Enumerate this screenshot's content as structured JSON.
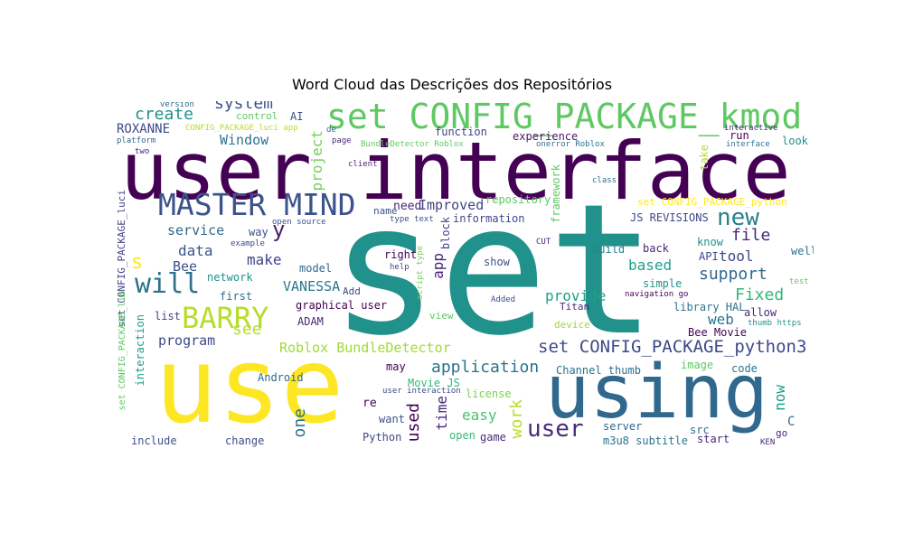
{
  "chart_data": {
    "type": "wordcloud",
    "title": "Word Cloud das Descrições dos Repositórios",
    "colormap": "viridis",
    "background": "#ffffff",
    "words": [
      {
        "text": "set",
        "weight": 100,
        "color": "#21918c"
      },
      {
        "text": "user interface",
        "weight": 68,
        "color": "#440154"
      },
      {
        "text": "use",
        "weight": 66,
        "color": "#fde725"
      },
      {
        "text": "using",
        "weight": 46,
        "color": "#31688e"
      },
      {
        "text": "set CONFIG_PACKAGE_kmod",
        "weight": 24,
        "color": "#5ec962"
      },
      {
        "text": "MASTER MIND",
        "weight": 21,
        "color": "#3b528b"
      },
      {
        "text": "BARRY",
        "weight": 19,
        "color": "#b5de2b"
      },
      {
        "text": "will",
        "weight": 18,
        "color": "#2c728e"
      },
      {
        "text": "new",
        "weight": 15,
        "color": "#26828e"
      },
      {
        "text": "user",
        "weight": 15,
        "color": "#472d7b"
      },
      {
        "text": "set CONFIG_PACKAGE_python3",
        "weight": 13,
        "color": "#3e4989"
      },
      {
        "text": "application",
        "weight": 12,
        "color": "#2c728e"
      },
      {
        "text": "system",
        "weight": 11,
        "color": "#3b528b"
      },
      {
        "text": "create",
        "weight": 11,
        "color": "#21918c"
      },
      {
        "text": "Window",
        "weight": 10,
        "color": "#2c728e"
      },
      {
        "text": "file",
        "weight": 11,
        "color": "#482878"
      },
      {
        "text": "Improved",
        "weight": 10,
        "color": "#414487"
      },
      {
        "text": "Roblox BundleDetector",
        "weight": 10,
        "color": "#a0da39"
      },
      {
        "text": "support",
        "weight": 11,
        "color": "#31688e"
      },
      {
        "text": "Fixed",
        "weight": 11,
        "color": "#35b779"
      },
      {
        "text": "based",
        "weight": 10,
        "color": "#1f9e89"
      },
      {
        "text": "provide",
        "weight": 10,
        "color": "#1fa187"
      },
      {
        "text": "easy",
        "weight": 10,
        "color": "#4ac16d"
      },
      {
        "text": "work",
        "weight": 11,
        "color": "#b5de2b"
      },
      {
        "text": "VANESSA",
        "weight": 10,
        "color": "#2a788e"
      },
      {
        "text": "data",
        "weight": 10,
        "color": "#3b528b"
      },
      {
        "text": "make",
        "weight": 10,
        "color": "#414487"
      },
      {
        "text": "service",
        "weight": 9,
        "color": "#31688e"
      },
      {
        "text": "program",
        "weight": 10,
        "color": "#3e4989"
      },
      {
        "text": "ROXANNE",
        "weight": 9,
        "color": "#3e4989"
      },
      {
        "text": "project",
        "weight": 10,
        "color": "#73d056"
      },
      {
        "text": "y",
        "weight": 14,
        "color": "#481f70"
      },
      {
        "text": "app",
        "weight": 10,
        "color": "#482475"
      },
      {
        "text": "used",
        "weight": 11,
        "color": "#440154"
      },
      {
        "text": "one",
        "weight": 10,
        "color": "#2c728e"
      },
      {
        "text": "time",
        "weight": 10,
        "color": "#482878"
      },
      {
        "text": "web",
        "weight": 10,
        "color": "#2c728e"
      },
      {
        "text": "tool",
        "weight": 9,
        "color": "#3e4989"
      },
      {
        "text": "now",
        "weight": 9,
        "color": "#1f9e89"
      },
      {
        "text": "see",
        "weight": 10,
        "color": "#b5de2b"
      },
      {
        "text": "Bee",
        "weight": 9,
        "color": "#3b528b"
      },
      {
        "text": "s",
        "weight": 12,
        "color": "#fde725"
      },
      {
        "text": "set CONFIG_PACKAGE_luci",
        "weight": 7,
        "color": "#414487"
      },
      {
        "text": "set CONFIG_PACKAGE_python",
        "weight": 7,
        "color": "#fde725"
      },
      {
        "text": "set CONFIG_PACKAGE_lib",
        "weight": 7,
        "color": "#5ec962"
      },
      {
        "text": "repository",
        "weight": 8,
        "color": "#5ec962"
      },
      {
        "text": "experience",
        "weight": 7,
        "color": "#481a6c"
      },
      {
        "text": "function",
        "weight": 7,
        "color": "#414487"
      },
      {
        "text": "information",
        "weight": 7,
        "color": "#3e4989"
      },
      {
        "text": "framework",
        "weight": 7,
        "color": "#5ec962"
      },
      {
        "text": "JS REVISIONS",
        "weight": 7,
        "color": "#3e4989"
      },
      {
        "text": "way",
        "weight": 7,
        "color": "#3b528b"
      },
      {
        "text": "graphical user",
        "weight": 7,
        "color": "#440154"
      },
      {
        "text": "model",
        "weight": 7,
        "color": "#31688e"
      },
      {
        "text": "network",
        "weight": 7,
        "color": "#21918c"
      },
      {
        "text": "first",
        "weight": 7,
        "color": "#2c728e"
      },
      {
        "text": "list",
        "weight": 7,
        "color": "#414487"
      },
      {
        "text": "ADAM",
        "weight": 7,
        "color": "#482878"
      },
      {
        "text": "interaction",
        "weight": 7,
        "color": "#1f9e89"
      },
      {
        "text": "include",
        "weight": 7,
        "color": "#3b528b"
      },
      {
        "text": "change",
        "weight": 7,
        "color": "#3e4989"
      },
      {
        "text": "Android",
        "weight": 7,
        "color": "#31688e"
      },
      {
        "text": "may",
        "weight": 7,
        "color": "#440154"
      },
      {
        "text": "Movie JS",
        "weight": 7,
        "color": "#35b779"
      },
      {
        "text": "re",
        "weight": 8,
        "color": "#440154"
      },
      {
        "text": "want",
        "weight": 7,
        "color": "#3b528b"
      },
      {
        "text": "Python",
        "weight": 7,
        "color": "#3e4989"
      },
      {
        "text": "open",
        "weight": 7,
        "color": "#35b779"
      },
      {
        "text": "game",
        "weight": 7,
        "color": "#472d7b"
      },
      {
        "text": "license",
        "weight": 7,
        "color": "#7ad151"
      },
      {
        "text": "server",
        "weight": 7,
        "color": "#31688e"
      },
      {
        "text": "src",
        "weight": 7,
        "color": "#2c728e"
      },
      {
        "text": "m3u8 subtitle",
        "weight": 7,
        "color": "#2c728e"
      },
      {
        "text": "start",
        "weight": 7,
        "color": "#482878"
      },
      {
        "text": "code",
        "weight": 7,
        "color": "#2c728e"
      },
      {
        "text": "image",
        "weight": 7,
        "color": "#5ec962"
      },
      {
        "text": "Channel thumb",
        "weight": 7,
        "color": "#2c728e"
      },
      {
        "text": "Bee Movie",
        "weight": 7,
        "color": "#440154"
      },
      {
        "text": "allow",
        "weight": 7,
        "color": "#482878"
      },
      {
        "text": "library HAL",
        "weight": 7,
        "color": "#2c728e"
      },
      {
        "text": "navigation go",
        "weight": 6,
        "color": "#440154"
      },
      {
        "text": "simple",
        "weight": 7,
        "color": "#21918c"
      },
      {
        "text": "API",
        "weight": 7,
        "color": "#3e4989"
      },
      {
        "text": "back",
        "weight": 7,
        "color": "#482878"
      },
      {
        "text": "build",
        "weight": 7,
        "color": "#26828e"
      },
      {
        "text": "know",
        "weight": 7,
        "color": "#21918c"
      },
      {
        "text": "well",
        "weight": 7,
        "color": "#2c728e"
      },
      {
        "text": "look",
        "weight": 7,
        "color": "#21918c"
      },
      {
        "text": "run",
        "weight": 7,
        "color": "#440154"
      },
      {
        "text": "take",
        "weight": 7,
        "color": "#b5de2b"
      },
      {
        "text": "show",
        "weight": 7,
        "color": "#3b528b"
      },
      {
        "text": "right",
        "weight": 7,
        "color": "#440154"
      },
      {
        "text": "block",
        "weight": 7,
        "color": "#414487"
      },
      {
        "text": "need",
        "weight": 8,
        "color": "#482878"
      },
      {
        "text": "name",
        "weight": 6,
        "color": "#3b528b"
      },
      {
        "text": "view",
        "weight": 6,
        "color": "#5ec962"
      },
      {
        "text": "device",
        "weight": 6,
        "color": "#a0da39"
      },
      {
        "text": "Titan",
        "weight": 6,
        "color": "#482878"
      },
      {
        "text": "Add",
        "weight": 6,
        "color": "#3e4989"
      },
      {
        "text": "control",
        "weight": 6,
        "color": "#5ec962"
      },
      {
        "text": "AI",
        "weight": 6,
        "color": "#3b528b"
      },
      {
        "text": "version",
        "weight": 5,
        "color": "#31688e"
      },
      {
        "text": "platform",
        "weight": 5,
        "color": "#31688e"
      },
      {
        "text": "client",
        "weight": 5,
        "color": "#482878"
      },
      {
        "text": "page",
        "weight": 5,
        "color": "#482878"
      },
      {
        "text": "de",
        "weight": 5,
        "color": "#31688e"
      },
      {
        "text": "two",
        "weight": 5,
        "color": "#482878"
      },
      {
        "text": "class",
        "weight": 5,
        "color": "#2c728e"
      },
      {
        "text": "CUT",
        "weight": 5,
        "color": "#482878"
      },
      {
        "text": "interactive",
        "weight": 5,
        "color": "#482878"
      },
      {
        "text": "interface",
        "weight": 5,
        "color": "#2c728e"
      },
      {
        "text": "open source",
        "weight": 5,
        "color": "#3b528b"
      },
      {
        "text": "type text",
        "weight": 5,
        "color": "#3b528b"
      },
      {
        "text": "example",
        "weight": 5,
        "color": "#3e4989"
      },
      {
        "text": "help",
        "weight": 5,
        "color": "#3e4989"
      },
      {
        "text": "script type",
        "weight": 5,
        "color": "#73d056"
      },
      {
        "text": "Added",
        "weight": 5,
        "color": "#3e4989"
      },
      {
        "text": "user interaction",
        "weight": 5,
        "color": "#3e4989"
      },
      {
        "text": "thumb https",
        "weight": 5,
        "color": "#21918c"
      },
      {
        "text": "KEN",
        "weight": 5,
        "color": "#482878"
      },
      {
        "text": "go",
        "weight": 6,
        "color": "#482878"
      },
      {
        "text": "C",
        "weight": 8,
        "color": "#31688e"
      },
      {
        "text": "test",
        "weight": 5,
        "color": "#5ec962"
      },
      {
        "text": "BundleDetector Roblox",
        "weight": 5,
        "color": "#5ec962"
      },
      {
        "text": "onerror Roblox",
        "weight": 5,
        "color": "#2c728e"
      },
      {
        "text": "CONFIG_PACKAGE_luci app",
        "weight": 5,
        "color": "#b5de2b"
      }
    ]
  }
}
